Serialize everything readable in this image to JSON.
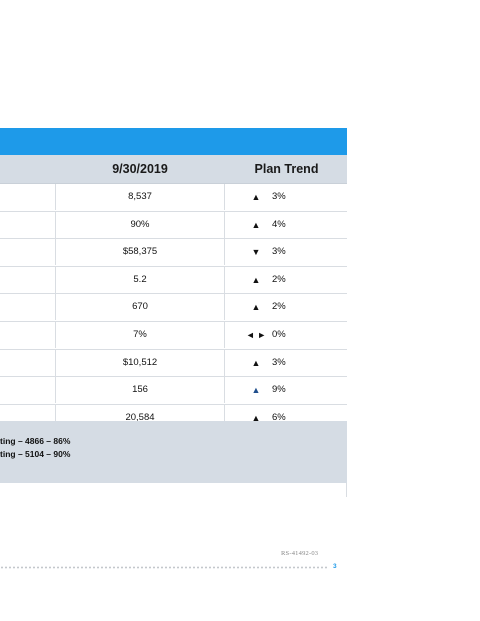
{
  "table": {
    "columns": [
      "9/30/2019",
      "Plan Trend"
    ],
    "rows": [
      {
        "value": "8,537",
        "arrow": "▲",
        "pct": "3%"
      },
      {
        "value": "90%",
        "arrow": "▲",
        "pct": "4%"
      },
      {
        "value": "$58,375",
        "arrow": "▼",
        "pct": "3%"
      },
      {
        "value": "5.2",
        "arrow": "▲",
        "pct": "2%"
      },
      {
        "value": "670",
        "arrow": "▲",
        "pct": "2%"
      },
      {
        "value": "7%",
        "arrow": "◄ ►",
        "pct": "0%"
      },
      {
        "value": "$10,512",
        "arrow": "▲",
        "pct": "3%"
      },
      {
        "value": "156",
        "arrow": "▲",
        "pct": "9%"
      },
      {
        "value": "20,584",
        "arrow": "▲",
        "pct": "6%"
      }
    ]
  },
  "notes": [
    "ting – 4866 – 86%",
    "ting – 5104 – 90%"
  ],
  "footer": {
    "code": "RS-41492-03",
    "page": "3"
  },
  "colors": {
    "banner": "#1E9AE9",
    "header_bg": "#D5DCE4",
    "arrow_blue": "#1F4E8C"
  }
}
